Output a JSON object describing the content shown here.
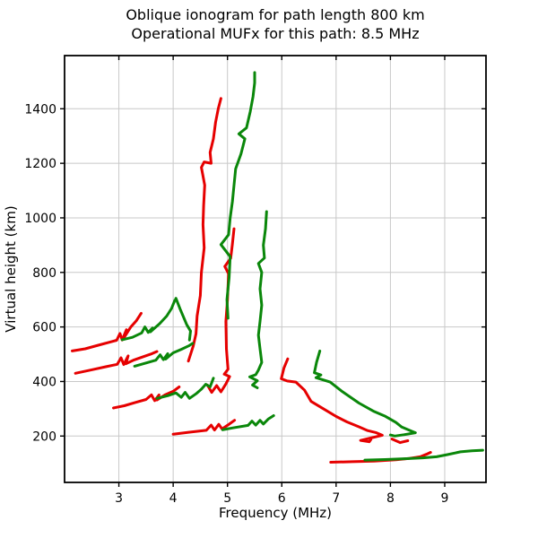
{
  "chart_data": {
    "type": "line",
    "title_line1": "Oblique ionogram for path length 800 km",
    "title_line2": "Operational MUFx for this path: 8.5 MHz",
    "xlabel": "Frequency (MHz)",
    "ylabel": "Virtual height (km)",
    "xlim": [
      2.0,
      9.76
    ],
    "ylim": [
      30,
      1595
    ],
    "x_ticks": [
      3,
      4,
      5,
      6,
      7,
      8,
      9
    ],
    "y_ticks": [
      200,
      400,
      600,
      800,
      1000,
      1200,
      1400
    ],
    "grid": true,
    "legend_position": "none",
    "colors": {
      "o_mode": "#e60000",
      "x_mode": "#0a870a",
      "grid": "#c8c8c8",
      "spine": "#000000",
      "background": "#ffffff"
    },
    "series": [
      {
        "name": "o-mode-upper-zigzag",
        "mode": "o_mode",
        "points": [
          [
            2.14,
            512
          ],
          [
            2.38,
            520
          ],
          [
            2.62,
            533
          ],
          [
            2.84,
            545
          ],
          [
            2.96,
            551
          ],
          [
            3.02,
            576
          ],
          [
            3.06,
            552
          ],
          [
            3.14,
            590
          ],
          [
            3.1,
            562
          ],
          [
            3.22,
            600
          ],
          [
            3.32,
            622
          ],
          [
            3.41,
            650
          ]
        ]
      },
      {
        "name": "o-mode-middle-zigzag",
        "mode": "o_mode",
        "points": [
          [
            2.2,
            430
          ],
          [
            2.48,
            442
          ],
          [
            2.76,
            454
          ],
          [
            2.97,
            463
          ],
          [
            3.04,
            487
          ],
          [
            3.09,
            462
          ],
          [
            3.17,
            494
          ],
          [
            3.13,
            465
          ],
          [
            3.28,
            479
          ],
          [
            3.45,
            491
          ],
          [
            3.61,
            502
          ],
          [
            3.7,
            510
          ]
        ]
      },
      {
        "name": "o-mode-lower-zigzag",
        "mode": "o_mode",
        "points": [
          [
            2.9,
            303
          ],
          [
            3.1,
            311
          ],
          [
            3.3,
            323
          ],
          [
            3.5,
            334
          ],
          [
            3.6,
            351
          ],
          [
            3.66,
            330
          ],
          [
            3.74,
            351
          ],
          [
            3.7,
            332
          ],
          [
            3.85,
            351
          ],
          [
            4.0,
            364
          ],
          [
            4.11,
            380
          ]
        ]
      },
      {
        "name": "o-mode-highray-inner",
        "mode": "o_mode",
        "points": [
          [
            4.63,
            387
          ],
          [
            4.71,
            360
          ],
          [
            4.8,
            385
          ],
          [
            4.88,
            362
          ],
          [
            4.97,
            391
          ],
          [
            5.04,
            418
          ],
          [
            4.94,
            427
          ],
          [
            5.01,
            445
          ],
          [
            4.98,
            520
          ],
          [
            4.97,
            620
          ],
          [
            5.0,
            700
          ],
          [
            5.02,
            795
          ],
          [
            4.95,
            822
          ],
          [
            5.06,
            852
          ],
          [
            5.09,
            905
          ],
          [
            5.12,
            960
          ]
        ]
      },
      {
        "name": "o-mode-highray-tall",
        "mode": "o_mode",
        "points": [
          [
            4.28,
            475
          ],
          [
            4.37,
            530
          ],
          [
            4.42,
            575
          ],
          [
            4.44,
            640
          ],
          [
            4.5,
            715
          ],
          [
            4.52,
            800
          ],
          [
            4.57,
            890
          ],
          [
            4.55,
            975
          ],
          [
            4.56,
            1045
          ],
          [
            4.58,
            1120
          ],
          [
            4.52,
            1185
          ],
          [
            4.57,
            1205
          ],
          [
            4.7,
            1200
          ],
          [
            4.68,
            1240
          ],
          [
            4.74,
            1290
          ],
          [
            4.78,
            1350
          ],
          [
            4.83,
            1400
          ],
          [
            4.88,
            1438
          ]
        ]
      },
      {
        "name": "o-mode-nose-descent",
        "mode": "o_mode",
        "points": [
          [
            6.11,
            483
          ],
          [
            6.04,
            450
          ],
          [
            5.99,
            410
          ],
          [
            6.1,
            402
          ],
          [
            6.26,
            398
          ],
          [
            6.42,
            368
          ],
          [
            6.54,
            327
          ],
          [
            6.75,
            302
          ],
          [
            7.0,
            272
          ],
          [
            7.2,
            252
          ],
          [
            7.42,
            234
          ],
          [
            7.58,
            220
          ],
          [
            7.74,
            212
          ],
          [
            7.85,
            203
          ],
          [
            7.6,
            191
          ],
          [
            7.45,
            184
          ],
          [
            7.61,
            179
          ],
          [
            7.64,
            187
          ]
        ]
      },
      {
        "name": "o-mode-e-layer-low",
        "mode": "o_mode",
        "points": [
          [
            6.9,
            104
          ],
          [
            7.3,
            106
          ],
          [
            7.7,
            108
          ],
          [
            8.1,
            113
          ],
          [
            8.35,
            118
          ],
          [
            8.55,
            124
          ],
          [
            8.66,
            133
          ],
          [
            8.74,
            140
          ]
        ]
      },
      {
        "name": "o-mode-stub",
        "mode": "o_mode",
        "points": [
          [
            8.03,
            189
          ],
          [
            8.18,
            176
          ],
          [
            8.32,
            183
          ]
        ]
      },
      {
        "name": "o-mode-2e-trace",
        "mode": "o_mode",
        "points": [
          [
            4.0,
            207
          ],
          [
            4.3,
            214
          ],
          [
            4.61,
            221
          ],
          [
            4.7,
            240
          ],
          [
            4.76,
            222
          ],
          [
            4.84,
            243
          ],
          [
            4.9,
            226
          ],
          [
            5.02,
            242
          ],
          [
            5.13,
            258
          ]
        ]
      },
      {
        "name": "x-mode-upper-zigzag",
        "mode": "x_mode",
        "points": [
          [
            3.06,
            553
          ],
          [
            3.25,
            562
          ],
          [
            3.42,
            578
          ],
          [
            3.48,
            600
          ],
          [
            3.54,
            580
          ],
          [
            3.62,
            596
          ],
          [
            3.58,
            582
          ],
          [
            3.75,
            612
          ],
          [
            3.88,
            640
          ],
          [
            3.97,
            668
          ],
          [
            4.03,
            698
          ]
        ]
      },
      {
        "name": "x-mode-middle-zigzag",
        "mode": "x_mode",
        "points": [
          [
            3.29,
            456
          ],
          [
            3.5,
            468
          ],
          [
            3.68,
            478
          ],
          [
            3.76,
            498
          ],
          [
            3.82,
            480
          ],
          [
            3.9,
            502
          ],
          [
            3.86,
            482
          ],
          [
            4.0,
            505
          ],
          [
            4.15,
            518
          ],
          [
            4.3,
            532
          ],
          [
            4.36,
            540
          ]
        ]
      },
      {
        "name": "x-mode-lower-zigzag",
        "mode": "x_mode",
        "points": [
          [
            3.7,
            338
          ],
          [
            3.9,
            348
          ],
          [
            4.05,
            358
          ],
          [
            4.15,
            342
          ],
          [
            4.22,
            360
          ],
          [
            4.3,
            338
          ],
          [
            4.42,
            355
          ],
          [
            4.52,
            372
          ],
          [
            4.6,
            390
          ],
          [
            4.68,
            380
          ],
          [
            4.74,
            412
          ]
        ]
      },
      {
        "name": "x-mode-descent-arc",
        "mode": "x_mode",
        "points": [
          [
            4.05,
            705
          ],
          [
            4.13,
            665
          ],
          [
            4.25,
            608
          ],
          [
            4.32,
            585
          ],
          [
            4.3,
            552
          ]
        ]
      },
      {
        "name": "x-mode-highray-tall",
        "mode": "x_mode",
        "points": [
          [
            5.01,
            632
          ],
          [
            4.99,
            700
          ],
          [
            5.03,
            780
          ],
          [
            5.05,
            858
          ],
          [
            4.88,
            902
          ],
          [
            5.02,
            938
          ],
          [
            5.05,
            1000
          ],
          [
            5.09,
            1060
          ],
          [
            5.12,
            1120
          ],
          [
            5.15,
            1180
          ],
          [
            5.25,
            1235
          ],
          [
            5.32,
            1290
          ],
          [
            5.21,
            1308
          ],
          [
            5.35,
            1330
          ],
          [
            5.42,
            1390
          ],
          [
            5.47,
            1445
          ],
          [
            5.5,
            1495
          ],
          [
            5.5,
            1533
          ]
        ]
      },
      {
        "name": "x-mode-highray-inner",
        "mode": "x_mode",
        "points": [
          [
            5.55,
            377
          ],
          [
            5.46,
            387
          ],
          [
            5.55,
            403
          ],
          [
            5.41,
            417
          ],
          [
            5.52,
            425
          ],
          [
            5.57,
            442
          ],
          [
            5.63,
            470
          ],
          [
            5.6,
            520
          ],
          [
            5.57,
            570
          ],
          [
            5.6,
            620
          ],
          [
            5.63,
            680
          ],
          [
            5.6,
            740
          ],
          [
            5.63,
            800
          ],
          [
            5.57,
            833
          ],
          [
            5.68,
            853
          ],
          [
            5.66,
            900
          ],
          [
            5.7,
            960
          ],
          [
            5.72,
            1023
          ]
        ]
      },
      {
        "name": "x-mode-nose-descent",
        "mode": "x_mode",
        "points": [
          [
            6.7,
            512
          ],
          [
            6.64,
            470
          ],
          [
            6.6,
            432
          ],
          [
            6.72,
            424
          ],
          [
            6.63,
            414
          ],
          [
            6.89,
            398
          ],
          [
            7.1,
            365
          ],
          [
            7.42,
            321
          ],
          [
            7.7,
            290
          ],
          [
            7.91,
            272
          ],
          [
            8.1,
            250
          ],
          [
            8.21,
            233
          ],
          [
            8.4,
            217
          ],
          [
            8.46,
            212
          ],
          [
            8.25,
            205
          ],
          [
            8.08,
            200
          ],
          [
            8.0,
            204
          ]
        ]
      },
      {
        "name": "x-mode-e-layer-low",
        "mode": "x_mode",
        "points": [
          [
            7.53,
            112
          ],
          [
            7.9,
            114
          ],
          [
            8.3,
            117
          ],
          [
            8.6,
            120
          ],
          [
            8.85,
            124
          ],
          [
            9.05,
            132
          ],
          [
            9.29,
            142
          ],
          [
            9.5,
            146
          ],
          [
            9.7,
            148
          ]
        ]
      },
      {
        "name": "x-mode-2e-trace",
        "mode": "x_mode",
        "points": [
          [
            4.91,
            223
          ],
          [
            5.1,
            230
          ],
          [
            5.38,
            239
          ],
          [
            5.45,
            255
          ],
          [
            5.52,
            240
          ],
          [
            5.6,
            258
          ],
          [
            5.66,
            244
          ],
          [
            5.75,
            262
          ],
          [
            5.85,
            275
          ]
        ]
      }
    ]
  }
}
